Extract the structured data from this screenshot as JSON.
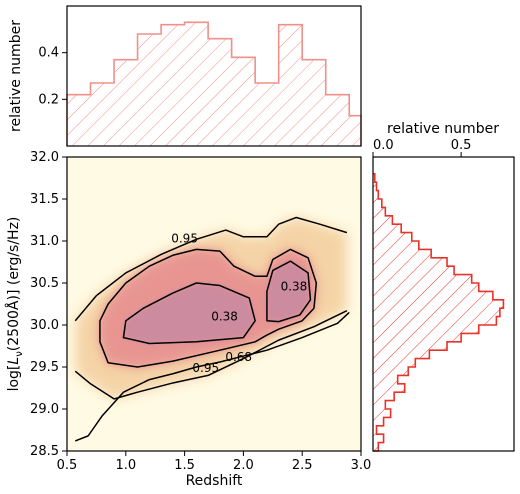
{
  "chart_data": [
    {
      "id": "top-histogram",
      "type": "histogram",
      "ylabel": "relative number",
      "ylim": [
        0,
        0.6
      ],
      "yticks": [
        "0.2",
        "0.4"
      ],
      "ytick_values": [
        0.2,
        0.4
      ],
      "bin_edges": [
        0.5,
        0.7,
        0.9,
        1.1,
        1.3,
        1.5,
        1.7,
        1.9,
        2.1,
        2.3,
        2.5,
        2.7,
        2.9,
        3.0
      ],
      "values": [
        0.22,
        0.27,
        0.37,
        0.48,
        0.52,
        0.53,
        0.46,
        0.38,
        0.27,
        0.52,
        0.37,
        0.22,
        0.13
      ],
      "color": "#f0908a"
    },
    {
      "id": "right-histogram",
      "type": "histogram",
      "orientation": "horizontal",
      "xlabel": "relative number",
      "xlim": [
        0,
        0.8
      ],
      "xticks": [
        "0.0",
        "0.5"
      ],
      "xtick_values": [
        0,
        0.5
      ],
      "bin_edges": [
        28.5,
        28.6,
        28.7,
        28.8,
        28.9,
        29.0,
        29.1,
        29.2,
        29.3,
        29.4,
        29.5,
        29.6,
        29.7,
        29.8,
        29.9,
        30.0,
        30.1,
        30.2,
        30.3,
        30.4,
        30.5,
        30.6,
        30.7,
        30.8,
        30.9,
        31.0,
        31.1,
        31.2,
        31.3,
        31.4,
        31.5,
        31.6,
        31.7,
        31.8
      ],
      "values": [
        0.03,
        0.06,
        0.02,
        0.06,
        0.1,
        0.07,
        0.12,
        0.18,
        0.14,
        0.2,
        0.24,
        0.32,
        0.42,
        0.5,
        0.6,
        0.7,
        0.72,
        0.74,
        0.68,
        0.6,
        0.56,
        0.46,
        0.42,
        0.33,
        0.26,
        0.22,
        0.16,
        0.11,
        0.07,
        0.05,
        0.03,
        0.02,
        0.01
      ],
      "color": "#e8322a"
    },
    {
      "id": "main-density",
      "type": "contour",
      "xlabel": "Redshift",
      "ylabel": "log[Lν(2500Å)] (erg/s/Hz)",
      "xlim": [
        0.5,
        3.0
      ],
      "ylim": [
        28.5,
        32.0
      ],
      "xticks": [
        "0.5",
        "1.0",
        "1.5",
        "2.0",
        "2.5",
        "3.0"
      ],
      "xtick_values": [
        0.5,
        1.0,
        1.5,
        2.0,
        2.5,
        3.0
      ],
      "yticks": [
        "28.5",
        "29.0",
        "29.5",
        "30.0",
        "30.5",
        "31.0",
        "31.5",
        "32.0"
      ],
      "ytick_values": [
        28.5,
        29.0,
        29.5,
        30.0,
        30.5,
        31.0,
        31.5,
        32.0
      ],
      "contour_levels": [
        "0.95",
        "0.68",
        "0.38"
      ],
      "contour_labels": [
        {
          "text": "0.95",
          "x": 1.5,
          "y": 31.03
        },
        {
          "text": "0.38",
          "x": 2.43,
          "y": 30.46
        },
        {
          "text": "0.38",
          "x": 1.84,
          "y": 30.1
        },
        {
          "text": "0.95",
          "x": 1.68,
          "y": 29.49
        },
        {
          "text": "0.68",
          "x": 1.96,
          "y": 29.62
        }
      ],
      "contours": [
        {
          "level": "0.95",
          "points": [
            [
              0.57,
              29.45
            ],
            [
              0.7,
              29.3
            ],
            [
              0.9,
              29.12
            ],
            [
              1.1,
              29.2
            ],
            [
              1.4,
              29.31
            ],
            [
              1.7,
              29.4
            ],
            [
              2.0,
              29.6
            ],
            [
              2.3,
              29.82
            ],
            [
              2.6,
              29.98
            ],
            [
              2.88,
              30.17
            ]
          ]
        },
        {
          "level": "0.95",
          "points": [
            [
              0.57,
              30.05
            ],
            [
              0.75,
              30.35
            ],
            [
              1.0,
              30.62
            ],
            [
              1.3,
              30.84
            ],
            [
              1.6,
              31.02
            ],
            [
              1.85,
              31.13
            ],
            [
              2.0,
              31.05
            ],
            [
              2.2,
              31.05
            ],
            [
              2.3,
              31.2
            ],
            [
              2.45,
              31.28
            ],
            [
              2.65,
              31.2
            ],
            [
              2.88,
              31.1
            ]
          ]
        },
        {
          "level": "0.95",
          "points": [
            [
              0.57,
              28.62
            ],
            [
              0.68,
              28.68
            ],
            [
              0.8,
              28.92
            ],
            [
              0.98,
              29.2
            ],
            [
              1.2,
              29.35
            ],
            [
              1.4,
              29.42
            ],
            [
              1.6,
              29.5
            ],
            [
              1.8,
              29.56
            ],
            [
              2.0,
              29.63
            ],
            [
              2.2,
              29.7
            ],
            [
              2.5,
              29.85
            ],
            [
              2.8,
              30.02
            ],
            [
              2.9,
              30.15
            ]
          ]
        },
        {
          "level": "0.68",
          "points": [
            [
              0.78,
              29.8
            ],
            [
              0.78,
              30.05
            ],
            [
              0.85,
              30.25
            ],
            [
              1.0,
              30.5
            ],
            [
              1.2,
              30.7
            ],
            [
              1.4,
              30.83
            ],
            [
              1.6,
              30.9
            ],
            [
              1.8,
              30.88
            ],
            [
              1.92,
              30.7
            ],
            [
              2.1,
              30.58
            ],
            [
              2.2,
              30.58
            ],
            [
              2.25,
              30.78
            ],
            [
              2.4,
              30.9
            ],
            [
              2.55,
              30.8
            ],
            [
              2.62,
              30.5
            ],
            [
              2.6,
              30.2
            ],
            [
              2.5,
              30.05
            ],
            [
              2.3,
              29.95
            ],
            [
              2.2,
              29.88
            ],
            [
              2.1,
              29.8
            ],
            [
              1.8,
              29.7
            ],
            [
              1.4,
              29.57
            ],
            [
              1.1,
              29.5
            ],
            [
              0.85,
              29.55
            ],
            [
              0.78,
              29.8
            ]
          ]
        },
        {
          "level": "0.38",
          "points": [
            [
              0.98,
              29.85
            ],
            [
              1.0,
              30.05
            ],
            [
              1.15,
              30.2
            ],
            [
              1.4,
              30.38
            ],
            [
              1.6,
              30.5
            ],
            [
              1.8,
              30.47
            ],
            [
              2.05,
              30.32
            ],
            [
              2.1,
              30.05
            ],
            [
              2.0,
              29.85
            ],
            [
              1.6,
              29.8
            ],
            [
              1.2,
              29.78
            ],
            [
              0.98,
              29.85
            ]
          ]
        },
        {
          "level": "0.38",
          "points": [
            [
              2.2,
              30.05
            ],
            [
              2.2,
              30.4
            ],
            [
              2.25,
              30.65
            ],
            [
              2.4,
              30.76
            ],
            [
              2.55,
              30.62
            ],
            [
              2.57,
              30.3
            ],
            [
              2.48,
              30.12
            ],
            [
              2.3,
              30.04
            ],
            [
              2.2,
              30.05
            ]
          ]
        }
      ],
      "density_colors": [
        "#fffae3",
        "#f3cd9c",
        "#e89392",
        "#c98aa0"
      ]
    }
  ]
}
